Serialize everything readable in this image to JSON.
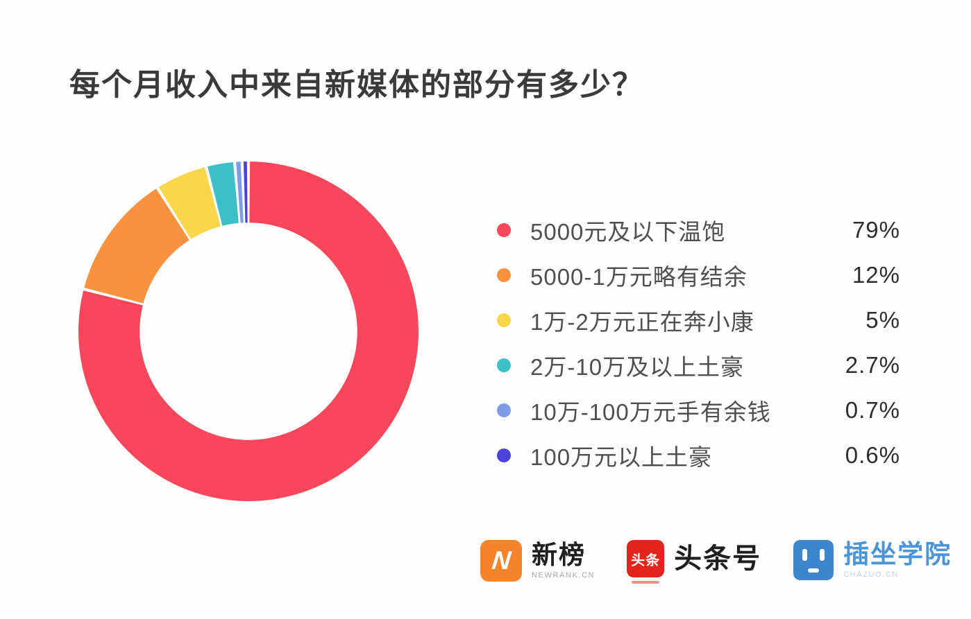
{
  "title": "每个月收入中来自新媒体的部分有多少？",
  "chart_data": {
    "type": "pie",
    "subtype": "donut",
    "title": "每个月收入中来自新媒体的部分有多少？",
    "categories": [
      "5000元及以下温饱",
      "5000-1万元略有结余",
      "1万-2万元正在奔小康",
      "2万-10万及以上土豪",
      "10万-100万元手有余钱",
      "100万元以上土豪"
    ],
    "values": [
      79,
      12,
      5,
      2.7,
      0.7,
      0.6
    ],
    "value_labels": [
      "79%",
      "12%",
      "5%",
      "2.7%",
      "0.7%",
      "0.6%"
    ],
    "colors": [
      "#f8465a",
      "#f9913e",
      "#f8d74b",
      "#3dbfc9",
      "#7d9ce8",
      "#4b43db"
    ],
    "start_angle_deg": 0,
    "direction": "clockwise",
    "inner_radius_ratio": 0.64,
    "segment_gap_deg": 1.0,
    "legend_position": "right"
  },
  "legend": {
    "items": [
      {
        "label": "5000元及以下温饱",
        "value": "79%"
      },
      {
        "label": "5000-1万元略有结余",
        "value": "12%"
      },
      {
        "label": "1万-2万元正在奔小康",
        "value": "5%"
      },
      {
        "label": "2万-10万及以上土豪",
        "value": "2.7%"
      },
      {
        "label": "10万-100万元手有余钱",
        "value": "0.7%"
      },
      {
        "label": "100万元以上土豪",
        "value": "0.6%"
      }
    ]
  },
  "footer": {
    "brands": [
      {
        "name": "新榜",
        "sub": "NEWRANK.CN",
        "icon_text": "N",
        "icon_color": "#f5842d"
      },
      {
        "name": "头条号",
        "sub": "",
        "icon_text": "头条",
        "icon_color": "#e2241d"
      },
      {
        "name": "插坐学院",
        "sub": "CHAZUO.CN",
        "icon_text": "",
        "icon_color": "#3b86cd"
      }
    ]
  }
}
